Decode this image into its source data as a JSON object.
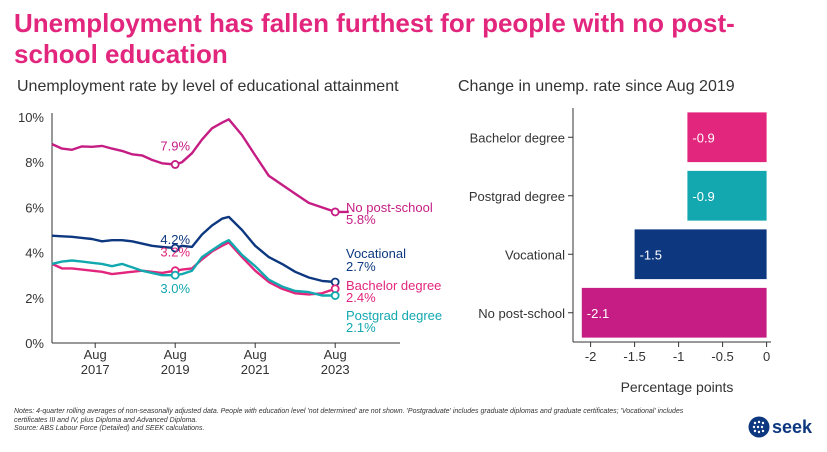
{
  "title": "Unemployment has fallen furthest for people with no post-school education",
  "logo_text": "seek",
  "notes": [
    "Notes: 4-quarter rolling averages of non-seasonally adjusted data. People with education level 'not determined' are not shown. 'Postgraduate' includes graduate diplomas and graduate certificates; 'Vocational' includes certificates III and IV, plus Diploma and Advanced Diploma.",
    "Source: ABS Labour Force (Detailed) and SEEK calculations."
  ],
  "colors": {
    "no_post_school": "#c51d84",
    "vocational": "#0d3880",
    "bachelor": "#e3267d",
    "postgrad": "#13a8b0",
    "axis": "#333333",
    "grid": "#dddddd"
  },
  "chart_data": [
    {
      "type": "line",
      "title": "Unemployment rate by level of educational attainment",
      "xlabel": "",
      "ylabel": "",
      "x_ticks": [
        {
          "x": 2017.58,
          "label": [
            "Aug",
            "2017"
          ]
        },
        {
          "x": 2019.58,
          "label": [
            "Aug",
            "2019"
          ]
        },
        {
          "x": 2021.58,
          "label": [
            "Aug",
            "2021"
          ]
        },
        {
          "x": 2023.58,
          "label": [
            "Aug",
            "2023"
          ]
        }
      ],
      "xlim": [
        2016.5,
        2025.2
      ],
      "ylim": [
        0,
        10
      ],
      "y_ticks": [
        0,
        2,
        4,
        6,
        8,
        10
      ],
      "y_tick_labels": [
        "0%",
        "2%",
        "4%",
        "6%",
        "8%",
        "10%"
      ],
      "grid": false,
      "series": [
        {
          "name": "No post-school",
          "color_key": "no_post_school",
          "label": [
            "No post-school",
            "5.8%"
          ],
          "points": [
            [
              2016.5,
              8.8
            ],
            [
              2016.75,
              8.6
            ],
            [
              2017.0,
              8.55
            ],
            [
              2017.25,
              8.7
            ],
            [
              2017.5,
              8.68
            ],
            [
              2017.75,
              8.72
            ],
            [
              2018.0,
              8.6
            ],
            [
              2018.25,
              8.5
            ],
            [
              2018.5,
              8.35
            ],
            [
              2018.75,
              8.3
            ],
            [
              2019.0,
              8.1
            ],
            [
              2019.25,
              7.95
            ],
            [
              2019.58,
              7.9
            ],
            [
              2019.75,
              8.0
            ],
            [
              2020.0,
              8.4
            ],
            [
              2020.25,
              9.0
            ],
            [
              2020.5,
              9.5
            ],
            [
              2020.75,
              9.75
            ],
            [
              2020.92,
              9.9
            ],
            [
              2021.25,
              9.2
            ],
            [
              2021.58,
              8.3
            ],
            [
              2021.92,
              7.4
            ],
            [
              2022.25,
              7.0
            ],
            [
              2022.58,
              6.6
            ],
            [
              2022.92,
              6.2
            ],
            [
              2023.25,
              6.0
            ],
            [
              2023.58,
              5.8
            ],
            [
              2023.92,
              5.8
            ]
          ],
          "marker": {
            "x": 2019.58,
            "y": 7.9,
            "label": "7.9%"
          },
          "end_marker": {
            "x": 2023.58,
            "y": 5.8
          }
        },
        {
          "name": "Vocational",
          "color_key": "vocational",
          "label": [
            "Vocational",
            "2.7%"
          ],
          "points": [
            [
              2016.5,
              4.75
            ],
            [
              2016.75,
              4.72
            ],
            [
              2017.0,
              4.7
            ],
            [
              2017.25,
              4.65
            ],
            [
              2017.5,
              4.6
            ],
            [
              2017.75,
              4.5
            ],
            [
              2018.0,
              4.55
            ],
            [
              2018.25,
              4.55
            ],
            [
              2018.5,
              4.5
            ],
            [
              2018.75,
              4.4
            ],
            [
              2019.0,
              4.3
            ],
            [
              2019.25,
              4.25
            ],
            [
              2019.58,
              4.2
            ],
            [
              2019.75,
              4.3
            ],
            [
              2020.0,
              4.25
            ],
            [
              2020.25,
              4.8
            ],
            [
              2020.5,
              5.2
            ],
            [
              2020.75,
              5.5
            ],
            [
              2020.92,
              5.58
            ],
            [
              2021.25,
              5.0
            ],
            [
              2021.58,
              4.3
            ],
            [
              2021.92,
              3.8
            ],
            [
              2022.25,
              3.5
            ],
            [
              2022.58,
              3.15
            ],
            [
              2022.92,
              2.9
            ],
            [
              2023.25,
              2.75
            ],
            [
              2023.58,
              2.7
            ]
          ],
          "marker": {
            "x": 2019.58,
            "y": 4.2,
            "label": "4.2%"
          },
          "end_marker": {
            "x": 2023.58,
            "y": 2.7
          }
        },
        {
          "name": "Bachelor degree",
          "color_key": "bachelor",
          "label": [
            "Bachelor degree",
            "2.4%"
          ],
          "points": [
            [
              2016.5,
              3.5
            ],
            [
              2016.75,
              3.3
            ],
            [
              2017.0,
              3.3
            ],
            [
              2017.25,
              3.25
            ],
            [
              2017.5,
              3.2
            ],
            [
              2017.75,
              3.15
            ],
            [
              2018.0,
              3.05
            ],
            [
              2018.25,
              3.1
            ],
            [
              2018.5,
              3.15
            ],
            [
              2018.75,
              3.2
            ],
            [
              2019.0,
              3.15
            ],
            [
              2019.25,
              3.1
            ],
            [
              2019.58,
              3.2
            ],
            [
              2019.75,
              3.25
            ],
            [
              2020.0,
              3.3
            ],
            [
              2020.25,
              3.7
            ],
            [
              2020.5,
              4.05
            ],
            [
              2020.75,
              4.3
            ],
            [
              2020.92,
              4.45
            ],
            [
              2021.25,
              3.8
            ],
            [
              2021.58,
              3.2
            ],
            [
              2021.92,
              2.7
            ],
            [
              2022.25,
              2.4
            ],
            [
              2022.58,
              2.2
            ],
            [
              2022.92,
              2.15
            ],
            [
              2023.25,
              2.2
            ],
            [
              2023.58,
              2.4
            ]
          ],
          "marker": {
            "x": 2019.58,
            "y": 3.2,
            "label": "3.2%"
          },
          "end_marker": {
            "x": 2023.58,
            "y": 2.4
          }
        },
        {
          "name": "Postgrad degree",
          "color_key": "postgrad",
          "label": [
            "Postgrad degree",
            "2.1%"
          ],
          "points": [
            [
              2016.5,
              3.5
            ],
            [
              2016.75,
              3.6
            ],
            [
              2017.0,
              3.65
            ],
            [
              2017.25,
              3.6
            ],
            [
              2017.5,
              3.55
            ],
            [
              2017.75,
              3.5
            ],
            [
              2018.0,
              3.4
            ],
            [
              2018.25,
              3.5
            ],
            [
              2018.5,
              3.35
            ],
            [
              2018.75,
              3.2
            ],
            [
              2019.0,
              3.1
            ],
            [
              2019.25,
              3.0
            ],
            [
              2019.58,
              3.0
            ],
            [
              2019.75,
              3.05
            ],
            [
              2020.0,
              3.2
            ],
            [
              2020.25,
              3.8
            ],
            [
              2020.5,
              4.1
            ],
            [
              2020.75,
              4.4
            ],
            [
              2020.92,
              4.55
            ],
            [
              2021.25,
              3.9
            ],
            [
              2021.58,
              3.4
            ],
            [
              2021.92,
              2.8
            ],
            [
              2022.25,
              2.5
            ],
            [
              2022.58,
              2.3
            ],
            [
              2022.92,
              2.25
            ],
            [
              2023.25,
              2.1
            ],
            [
              2023.58,
              2.1
            ]
          ],
          "marker": {
            "x": 2019.58,
            "y": 3.0,
            "label": "3.0%"
          },
          "end_marker": {
            "x": 2023.58,
            "y": 2.1
          }
        }
      ]
    },
    {
      "type": "bar",
      "orientation": "horizontal",
      "title": "Change in unemp. rate since Aug 2019",
      "xlabel": "Percentage points",
      "xlim": [
        -2.2,
        0.05
      ],
      "x_ticks": [
        -2,
        -1.5,
        -1,
        -0.5,
        0
      ],
      "x_tick_labels": [
        "-2",
        "-1.5",
        "-1",
        "-0.5",
        "0"
      ],
      "categories": [
        "Bachelor degree",
        "Postgrad degree",
        "Vocational",
        "No post-school"
      ],
      "values": [
        -0.9,
        -0.9,
        -1.5,
        -2.1
      ],
      "value_labels": [
        "-0.9",
        "-0.9",
        "-1.5",
        "-2.1"
      ],
      "color_keys": [
        "bachelor",
        "postgrad",
        "vocational",
        "no_post_school"
      ]
    }
  ]
}
